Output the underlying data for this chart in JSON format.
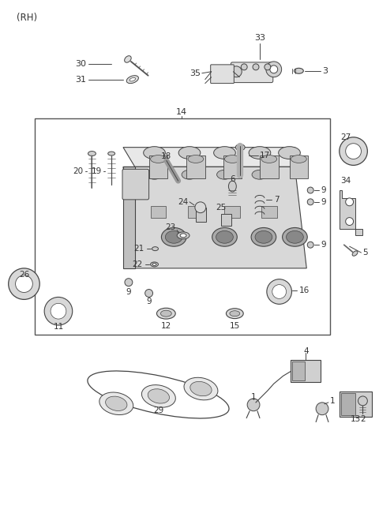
{
  "bg_color": "#ffffff",
  "lc": "#333333",
  "pc": "#444444",
  "fig_width": 4.8,
  "fig_height": 6.55,
  "dpi": 100
}
